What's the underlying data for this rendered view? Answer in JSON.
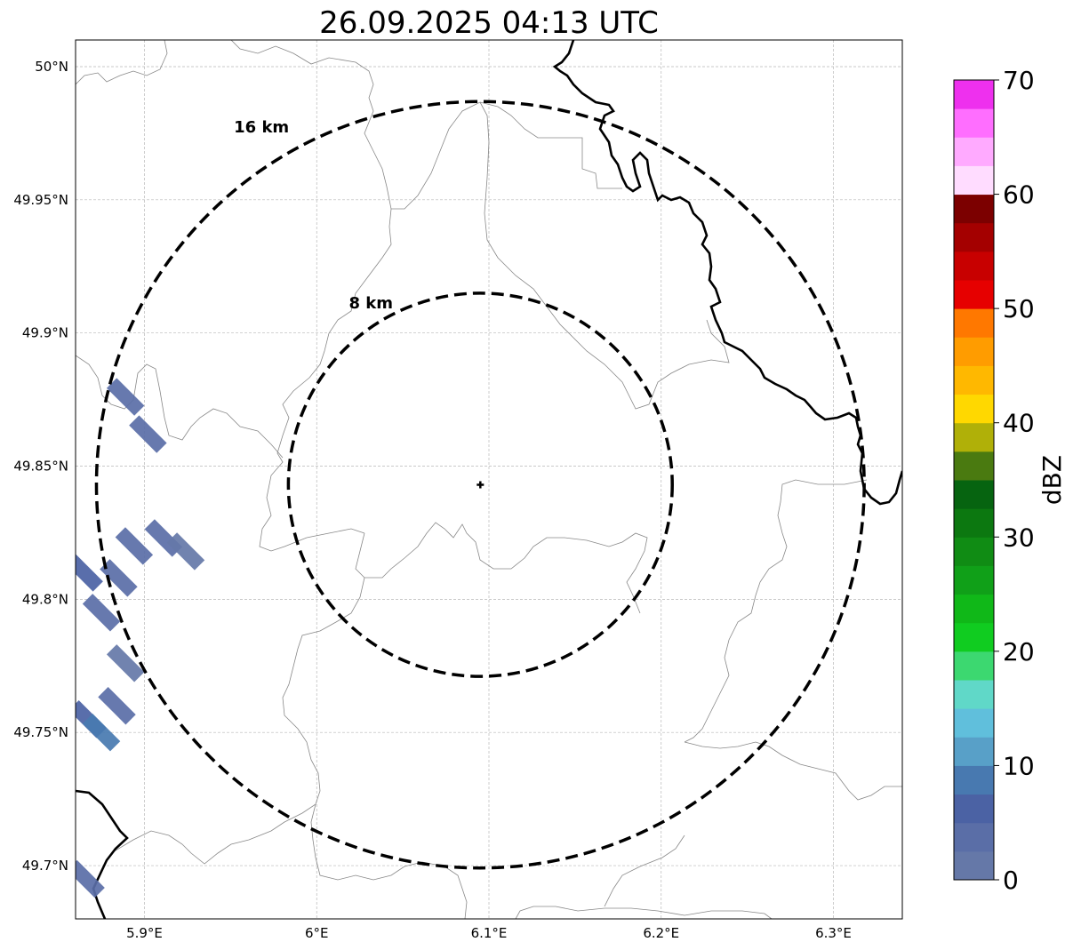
{
  "title": "26.09.2025 04:13 UTC",
  "map": {
    "lon_range": [
      5.86,
      6.34
    ],
    "lat_range": [
      49.68,
      50.01
    ],
    "lon_ticks": [
      {
        "value": 5.9,
        "label": "5.9°E"
      },
      {
        "value": 6.0,
        "label": "6°E"
      },
      {
        "value": 6.1,
        "label": "6.1°E"
      },
      {
        "value": 6.2,
        "label": "6.2°E"
      },
      {
        "value": 6.3,
        "label": "6.3°E"
      }
    ],
    "lat_ticks": [
      {
        "value": 50.0,
        "label": "50°N"
      },
      {
        "value": 49.95,
        "label": "49.95°N"
      },
      {
        "value": 49.9,
        "label": "49.9°N"
      },
      {
        "value": 49.85,
        "label": "49.85°N"
      },
      {
        "value": 49.8,
        "label": "49.8°N"
      },
      {
        "value": 49.75,
        "label": "49.75°N"
      },
      {
        "value": 49.7,
        "label": "49.7°N"
      }
    ],
    "gridlines": true,
    "radar_site": {
      "lon": 6.095,
      "lat": 49.843
    },
    "range_rings": [
      {
        "radius_km": 8,
        "label": "8 km"
      },
      {
        "radius_km": 16,
        "label": "16 km"
      }
    ],
    "precipitation_cells": [
      {
        "lon": 5.889,
        "lat": 49.876,
        "dbz": 3
      },
      {
        "lon": 5.902,
        "lat": 49.862,
        "dbz": 3
      },
      {
        "lon": 5.865,
        "lat": 49.81,
        "dbz": 5
      },
      {
        "lon": 5.885,
        "lat": 49.808,
        "dbz": 4
      },
      {
        "lon": 5.875,
        "lat": 49.795,
        "dbz": 3
      },
      {
        "lon": 5.894,
        "lat": 49.82,
        "dbz": 3
      },
      {
        "lon": 5.911,
        "lat": 49.823,
        "dbz": 4
      },
      {
        "lon": 5.924,
        "lat": 49.818,
        "dbz": 2
      },
      {
        "lon": 5.867,
        "lat": 49.755,
        "dbz": 5
      },
      {
        "lon": 5.875,
        "lat": 49.75,
        "dbz": 8
      },
      {
        "lon": 5.884,
        "lat": 49.76,
        "dbz": 3
      },
      {
        "lon": 5.889,
        "lat": 49.776,
        "dbz": 2
      },
      {
        "lon": 5.866,
        "lat": 49.695,
        "dbz": 4
      }
    ]
  },
  "colorbar": {
    "label": "dBZ",
    "min": 0,
    "max": 70,
    "tick_labels": [
      "0",
      "10",
      "20",
      "30",
      "40",
      "50",
      "60",
      "70"
    ],
    "colors": [
      "#6578a8",
      "#5a6ea7",
      "#4b62a4",
      "#4879b0",
      "#58a0c8",
      "#60bfdc",
      "#60d8c8",
      "#3cd870",
      "#10cc20",
      "#10b818",
      "#10a018",
      "#108c14",
      "#0c7810",
      "#066410",
      "#4a7a10",
      "#b0b008",
      "#ffd800",
      "#ffb800",
      "#ff9c00",
      "#ff7800",
      "#e60000",
      "#c80000",
      "#a40000",
      "#7c0000",
      "#ffdcff",
      "#ffaaff",
      "#ff6eff",
      "#ee30ee"
    ]
  }
}
